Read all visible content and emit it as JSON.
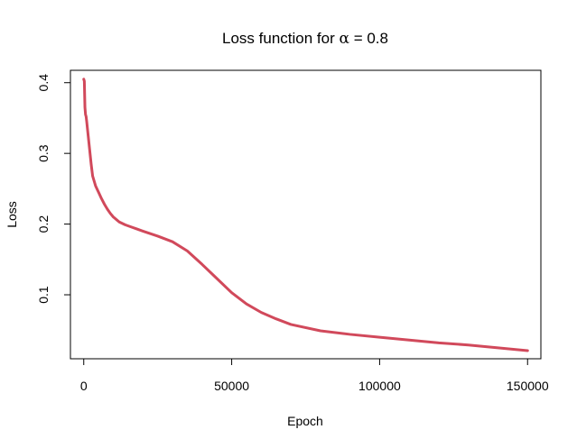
{
  "chart_data": {
    "type": "line",
    "title_prefix": "Loss function for ",
    "title_symbol": "α",
    "title_suffix": " = 0.8",
    "xlabel": "Epoch",
    "ylabel": "Loss",
    "xlim": [
      -4500,
      154500
    ],
    "ylim": [
      0.0095,
      0.4175
    ],
    "x_ticks": [
      0,
      50000,
      100000,
      150000
    ],
    "x_tick_labels": [
      "0",
      "50000",
      "100000",
      "150000"
    ],
    "y_ticks": [
      0.1,
      0.2,
      0.3,
      0.4
    ],
    "y_tick_labels": [
      "0.1",
      "0.2",
      "0.3",
      "0.4"
    ],
    "grid": false,
    "legend": "none",
    "series": [
      {
        "color": "#d1495b",
        "x": [
          0,
          200,
          400,
          600,
          800,
          1000,
          1500,
          2000,
          2500,
          3000,
          4000,
          5000,
          6000,
          7000,
          8000,
          9000,
          10000,
          12000,
          14000,
          16000,
          18000,
          20000,
          25000,
          30000,
          35000,
          40000,
          45000,
          50000,
          55000,
          60000,
          65000,
          70000,
          80000,
          90000,
          100000,
          110000,
          120000,
          130000,
          140000,
          150000
        ],
        "y": [
          0.405,
          0.402,
          0.365,
          0.355,
          0.352,
          0.345,
          0.325,
          0.305,
          0.285,
          0.268,
          0.254,
          0.245,
          0.236,
          0.228,
          0.221,
          0.215,
          0.21,
          0.203,
          0.199,
          0.196,
          0.193,
          0.19,
          0.183,
          0.175,
          0.162,
          0.143,
          0.123,
          0.103,
          0.087,
          0.075,
          0.066,
          0.058,
          0.049,
          0.044,
          0.04,
          0.036,
          0.032,
          0.029,
          0.025,
          0.021
        ]
      }
    ]
  }
}
